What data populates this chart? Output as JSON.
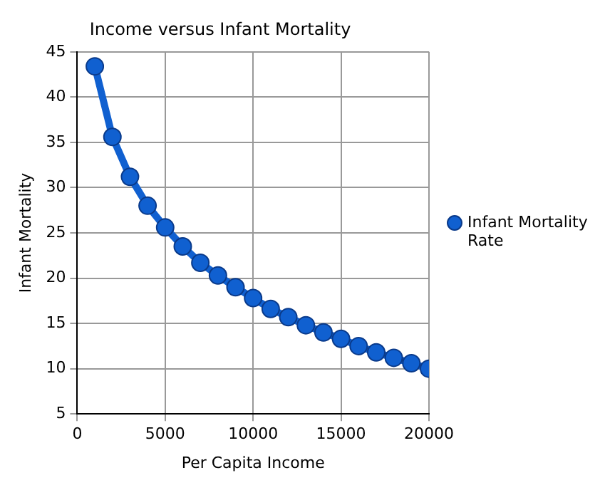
{
  "chart_data": {
    "type": "line",
    "title": "Income versus Infant Mortality",
    "xlabel": "Per Capita Income",
    "ylabel": "Infant Mortality",
    "x": [
      1000,
      2000,
      3000,
      4000,
      5000,
      6000,
      7000,
      8000,
      9000,
      10000,
      11000,
      12000,
      13000,
      14000,
      15000,
      16000,
      17000,
      18000,
      19000,
      20000
    ],
    "series": [
      {
        "name": "Infant Mortality Rate",
        "color": "#1060d0",
        "values": [
          43.4,
          35.6,
          31.2,
          28.0,
          25.6,
          23.5,
          21.7,
          20.3,
          19.0,
          17.8,
          16.6,
          15.7,
          14.8,
          14.0,
          13.3,
          12.5,
          11.8,
          11.2,
          10.6,
          10.0
        ]
      }
    ],
    "xlim": [
      0,
      20000
    ],
    "xticks": [
      0,
      5000,
      10000,
      15000,
      20000
    ],
    "ylim": [
      5,
      45
    ],
    "yticks": [
      5,
      10,
      15,
      20,
      25,
      30,
      35,
      40,
      45
    ],
    "grid": true,
    "legend": "right",
    "marker": "circle",
    "line_style": "solid"
  }
}
